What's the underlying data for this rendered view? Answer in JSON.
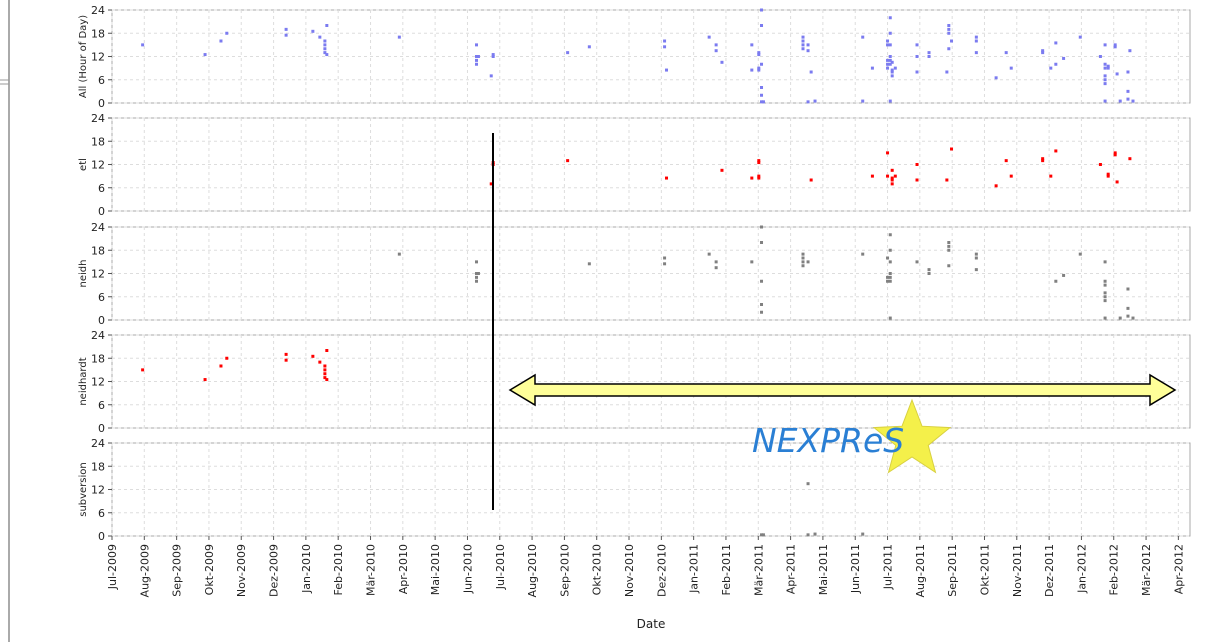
{
  "chart_data": [
    {
      "type": "scatter",
      "ylabel": "All (Hour of Day)",
      "color": "#7b7bf0",
      "xlim": [
        2009.5,
        2012.28
      ],
      "ylim": [
        0,
        24
      ],
      "yticks": [
        0,
        6,
        12,
        18,
        24
      ],
      "grid": true,
      "x": [
        2009.579,
        2009.74,
        2009.781,
        2009.796,
        2009.949,
        2009.949,
        2010.018,
        2010.036,
        2010.049,
        2010.049,
        2010.049,
        2010.049,
        2010.054,
        2010.054,
        2010.483,
        2010.483,
        2010.478,
        2010.675,
        2010.93,
        2011.073,
        2011.168,
        2011.168,
        2011.168,
        2011.168,
        2011.15,
        2011.303,
        2011.461,
        2011.5,
        2011.5,
        2011.512,
        2011.512,
        2011.512,
        2011.512,
        2011.52,
        2011.576,
        2011.576,
        2011.653,
        2011.665,
        2011.78,
        2011.806,
        2011.819,
        2011.9,
        2011.9,
        2011.921,
        2011.934,
        2012.049,
        2012.069,
        2012.069,
        2012.087,
        2012.087,
        2012.092,
        2012.125,
        2010.241,
        2010.44,
        2010.44,
        2010.44,
        2010.44,
        2010.445,
        2010.731,
        2010.925,
        2010.925,
        2011.04,
        2011.058,
        2011.058,
        2011.15,
        2011.175,
        2011.175,
        2011.175,
        2011.175,
        2011.175,
        2011.282,
        2011.282,
        2011.282,
        2011.282,
        2011.295,
        2011.436,
        2011.5,
        2011.5,
        2011.5,
        2011.507,
        2011.507,
        2011.507,
        2011.507,
        2011.507,
        2011.507,
        2011.507,
        2011.576,
        2011.607,
        2011.607,
        2011.658,
        2011.658,
        2011.658,
        2011.658,
        2011.729,
        2011.729,
        2011.729,
        2011.934,
        2011.954,
        2011.997,
        2012.061,
        2012.061,
        2012.061,
        2012.061,
        2012.061,
        2012.061,
        2012.061,
        2012.1,
        2012.12,
        2012.12,
        2012.12,
        2012.133,
        2011.175,
        2011.18,
        2011.295,
        2011.295,
        2011.313,
        2011.436
      ],
      "values": [
        15,
        12.5,
        16,
        18,
        19,
        17.5,
        18.5,
        17,
        16,
        15,
        14,
        13,
        20,
        12.5,
        12,
        12.5,
        7,
        13,
        8.5,
        10.5,
        12.5,
        13,
        8.5,
        9,
        8.5,
        8,
        9,
        15,
        9,
        10.5,
        8,
        7,
        8.5,
        9,
        12,
        8,
        8,
        16,
        6.5,
        13,
        9,
        13,
        13.5,
        9,
        15.5,
        12,
        9.5,
        9,
        14.5,
        15,
        7.5,
        13.5,
        17,
        15,
        12,
        11,
        10,
        12,
        14.5,
        16,
        14.5,
        17,
        13.5,
        15,
        15,
        24,
        20,
        10,
        4,
        2,
        17,
        16,
        15,
        14,
        15,
        17,
        16,
        11,
        10,
        22,
        18,
        15,
        12,
        11,
        10,
        0.5,
        15,
        13,
        12,
        20,
        19,
        18,
        14,
        17,
        16,
        13,
        10,
        11.5,
        17,
        15,
        10,
        9,
        7,
        6,
        5,
        0.5,
        0.5,
        8,
        3,
        1,
        0.5,
        0.3,
        0.3,
        13.5,
        0.3,
        0.5,
        0.5
      ]
    },
    {
      "type": "scatter",
      "ylabel": "etl",
      "color": "#ff0000",
      "xlim": [
        2009.5,
        2012.28
      ],
      "ylim": [
        0,
        24
      ],
      "yticks": [
        0,
        6,
        12,
        18,
        24
      ],
      "grid": true,
      "x": [
        2010.483,
        2010.483,
        2010.478,
        2010.675,
        2010.93,
        2011.073,
        2011.168,
        2011.168,
        2011.168,
        2011.168,
        2011.15,
        2011.303,
        2011.461,
        2011.5,
        2011.5,
        2011.512,
        2011.512,
        2011.512,
        2011.512,
        2011.52,
        2011.576,
        2011.576,
        2011.653,
        2011.665,
        2011.78,
        2011.806,
        2011.819,
        2011.9,
        2011.9,
        2011.921,
        2011.934,
        2012.049,
        2012.069,
        2012.069,
        2012.087,
        2012.087,
        2012.092,
        2012.125
      ],
      "values": [
        12,
        12.5,
        7,
        13,
        8.5,
        10.5,
        12.5,
        13,
        8.5,
        9,
        8.5,
        8,
        9,
        15,
        9,
        10.5,
        8,
        7,
        8.5,
        9,
        12,
        8,
        8,
        16,
        6.5,
        13,
        9,
        13,
        13.5,
        9,
        15.5,
        12,
        9.5,
        9,
        14.5,
        15,
        7.5,
        13.5
      ]
    },
    {
      "type": "scatter",
      "ylabel": "neidh",
      "color": "#808080",
      "xlim": [
        2009.5,
        2012.28
      ],
      "ylim": [
        0,
        24
      ],
      "yticks": [
        0,
        6,
        12,
        18,
        24
      ],
      "grid": true,
      "x": [
        2010.241,
        2010.44,
        2010.44,
        2010.44,
        2010.44,
        2010.445,
        2010.731,
        2010.925,
        2010.925,
        2011.04,
        2011.058,
        2011.058,
        2011.15,
        2011.175,
        2011.175,
        2011.175,
        2011.175,
        2011.175,
        2011.282,
        2011.282,
        2011.282,
        2011.282,
        2011.295,
        2011.436,
        2011.5,
        2011.5,
        2011.5,
        2011.507,
        2011.507,
        2011.507,
        2011.507,
        2011.507,
        2011.507,
        2011.507,
        2011.576,
        2011.607,
        2011.607,
        2011.658,
        2011.658,
        2011.658,
        2011.658,
        2011.729,
        2011.729,
        2011.729,
        2011.934,
        2011.954,
        2011.997,
        2012.061,
        2012.061,
        2012.061,
        2012.061,
        2012.061,
        2012.061,
        2012.061,
        2012.1,
        2012.12,
        2012.12,
        2012.12,
        2012.133
      ],
      "values": [
        17,
        15,
        12,
        11,
        10,
        12,
        14.5,
        16,
        14.5,
        17,
        13.5,
        15,
        15,
        24,
        20,
        10,
        4,
        2,
        17,
        16,
        15,
        14,
        15,
        17,
        16,
        11,
        10,
        22,
        18,
        15,
        12,
        11,
        10,
        0.5,
        15,
        13,
        12,
        20,
        19,
        18,
        14,
        17,
        16,
        13,
        10,
        11.5,
        17,
        15,
        10,
        9,
        7,
        6,
        5,
        0.5,
        0.5,
        8,
        3,
        1,
        0.5
      ]
    },
    {
      "type": "scatter",
      "ylabel": "neidhardt",
      "color": "#ff0000",
      "xlim": [
        2009.5,
        2012.28
      ],
      "ylim": [
        0,
        24
      ],
      "yticks": [
        0,
        6,
        12,
        18,
        24
      ],
      "grid": true,
      "x": [
        2009.579,
        2009.74,
        2009.781,
        2009.796,
        2009.949,
        2009.949,
        2010.018,
        2010.036,
        2010.049,
        2010.049,
        2010.049,
        2010.049,
        2010.054,
        2010.054
      ],
      "values": [
        15,
        12.5,
        16,
        18,
        19,
        17.5,
        18.5,
        17,
        16,
        15,
        14,
        13,
        20,
        12.5
      ]
    },
    {
      "type": "scatter",
      "ylabel": "subversion",
      "color": "#808080",
      "xlim": [
        2009.5,
        2012.28
      ],
      "ylim": [
        0,
        24
      ],
      "yticks": [
        0,
        6,
        12,
        18,
        24
      ],
      "grid": true,
      "x": [
        2011.175,
        2011.18,
        2011.295,
        2011.295,
        2011.313,
        2011.436
      ],
      "values": [
        0.3,
        0.3,
        13.5,
        0.3,
        0.5,
        0.5
      ],
      "xlabel": "Date",
      "xticks": [
        {
          "value": 2009.5,
          "label": "Jul-2009"
        },
        {
          "value": 2009.5833,
          "label": "Aug-2009"
        },
        {
          "value": 2009.6667,
          "label": "Sep-2009"
        },
        {
          "value": 2009.75,
          "label": "Okt-2009"
        },
        {
          "value": 2009.8333,
          "label": "Nov-2009"
        },
        {
          "value": 2009.9167,
          "label": "Dez-2009"
        },
        {
          "value": 2010,
          "label": "Jan-2010"
        },
        {
          "value": 2010.0833,
          "label": "Feb-2010"
        },
        {
          "value": 2010.1667,
          "label": "Mär-2010"
        },
        {
          "value": 2010.25,
          "label": "Apr-2010"
        },
        {
          "value": 2010.3333,
          "label": "Mai-2010"
        },
        {
          "value": 2010.4167,
          "label": "Jun-2010"
        },
        {
          "value": 2010.5,
          "label": "Jul-2010"
        },
        {
          "value": 2010.5833,
          "label": "Aug-2010"
        },
        {
          "value": 2010.6667,
          "label": "Sep-2010"
        },
        {
          "value": 2010.75,
          "label": "Okt-2010"
        },
        {
          "value": 2010.8333,
          "label": "Nov-2010"
        },
        {
          "value": 2010.9167,
          "label": "Dez-2010"
        },
        {
          "value": 2011,
          "label": "Jan-2011"
        },
        {
          "value": 2011.0833,
          "label": "Feb-2011"
        },
        {
          "value": 2011.1667,
          "label": "Mär-2011"
        },
        {
          "value": 2011.25,
          "label": "Apr-2011"
        },
        {
          "value": 2011.3333,
          "label": "Mai-2011"
        },
        {
          "value": 2011.4167,
          "label": "Jun-2011"
        },
        {
          "value": 2011.5,
          "label": "Jul-2011"
        },
        {
          "value": 2011.5833,
          "label": "Aug-2011"
        },
        {
          "value": 2011.6667,
          "label": "Sep-2011"
        },
        {
          "value": 2011.75,
          "label": "Okt-2011"
        },
        {
          "value": 2011.8333,
          "label": "Nov-2011"
        },
        {
          "value": 2011.9167,
          "label": "Dez-2011"
        },
        {
          "value": 2012,
          "label": "Jan-2012"
        },
        {
          "value": 2012.0833,
          "label": "Feb-2012"
        },
        {
          "value": 2012.1667,
          "label": "Mär-2012"
        },
        {
          "value": 2012.25,
          "label": "Apr-2012"
        }
      ]
    }
  ],
  "logo": "NEXPReS"
}
